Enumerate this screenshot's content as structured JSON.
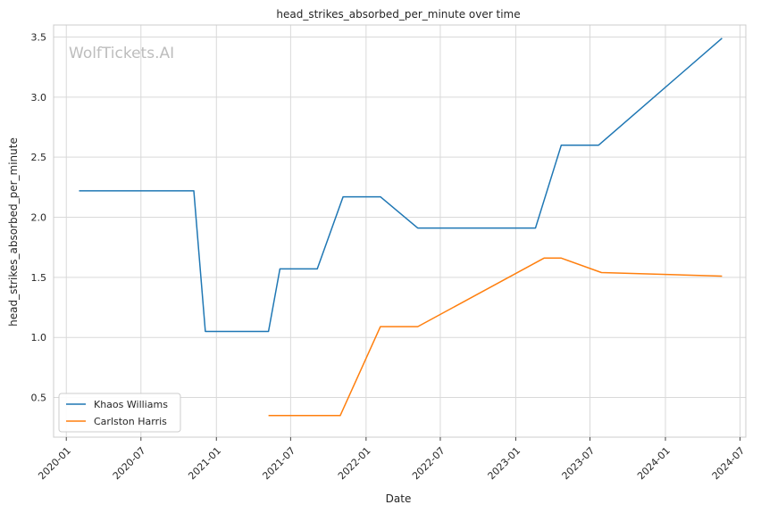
{
  "chart_data": {
    "type": "line",
    "title": "head_strikes_absorbed_per_minute over time",
    "xlabel": "Date",
    "ylabel": "head_strikes_absorbed_per_minute",
    "watermark": "WolfTickets.AI",
    "x_ticks": [
      "2020-01",
      "2020-07",
      "2021-01",
      "2021-07",
      "2022-01",
      "2022-07",
      "2023-01",
      "2023-07",
      "2024-01",
      "2024-07"
    ],
    "y_ticks": [
      "0.5",
      "1.0",
      "1.5",
      "2.0",
      "2.5",
      "3.0",
      "3.5"
    ],
    "xlim": [
      "2019-12-01",
      "2024-07-15"
    ],
    "ylim": [
      0.17,
      3.6
    ],
    "grid": true,
    "legend_position": "lower-left",
    "colors": {
      "Khaos Williams": "#1f77b4",
      "Carlston Harris": "#ff7f0e",
      "grid": "#d9d9d9"
    },
    "series": [
      {
        "name": "Khaos Williams",
        "x": [
          "2020-02-01",
          "2020-11-07",
          "2020-12-05",
          "2021-05-08",
          "2021-06-05",
          "2021-09-04",
          "2021-11-06",
          "2022-02-05",
          "2022-05-07",
          "2023-02-18",
          "2023-04-22",
          "2023-07-22",
          "2024-05-18"
        ],
        "y": [
          2.22,
          2.22,
          1.05,
          1.05,
          1.57,
          1.57,
          2.17,
          2.17,
          1.91,
          1.91,
          2.6,
          2.6,
          3.49
        ]
      },
      {
        "name": "Carlston Harris",
        "x": [
          "2021-05-08",
          "2021-10-30",
          "2022-02-05",
          "2022-05-07",
          "2023-03-11",
          "2023-04-22",
          "2023-07-29",
          "2024-05-18"
        ],
        "y": [
          0.35,
          0.35,
          1.09,
          1.09,
          1.66,
          1.66,
          1.54,
          1.51
        ]
      }
    ]
  }
}
